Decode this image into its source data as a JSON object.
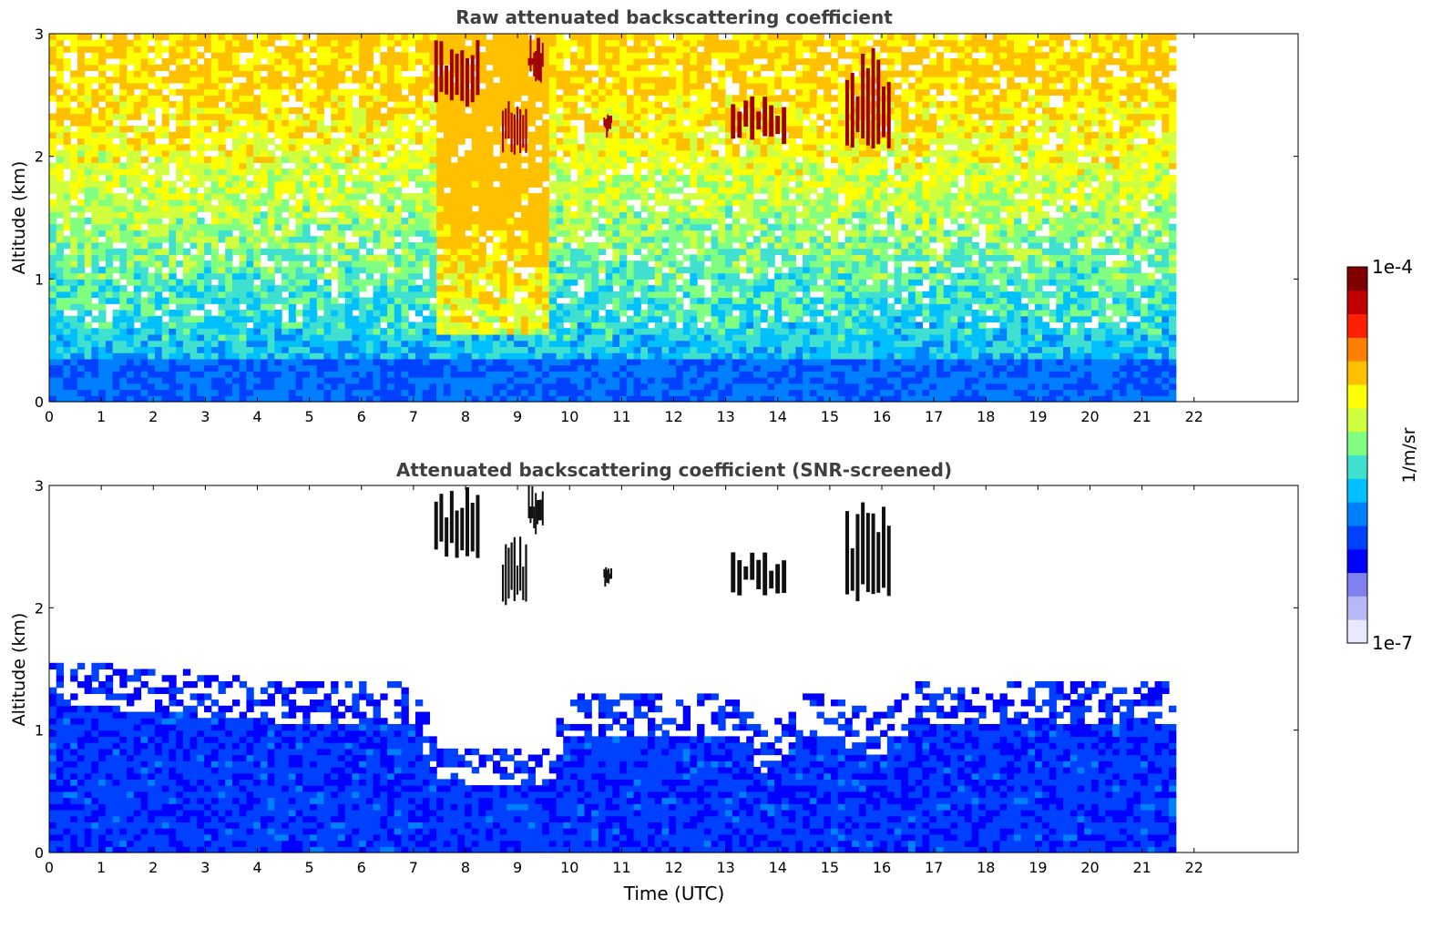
{
  "chart_data": [
    {
      "type": "heatmap",
      "title": "Raw attenuated backscattering coefficient",
      "xlabel": "",
      "ylabel": "Altitude (km)",
      "xlim": [
        0,
        24
      ],
      "ylim": [
        0,
        3
      ],
      "x_ticks": [
        0,
        1,
        2,
        3,
        4,
        5,
        6,
        7,
        8,
        9,
        10,
        11,
        12,
        13,
        14,
        15,
        16,
        17,
        18,
        19,
        20,
        21,
        22
      ],
      "y_ticks": [
        0,
        1,
        2,
        3
      ],
      "data_end_time": 21.65,
      "grid": false,
      "features": [
        {
          "kind": "cloud-layer",
          "t_start": 7.4,
          "t_end": 8.3,
          "alt_bottom": 2.4,
          "alt_top": 3.0
        },
        {
          "kind": "cloud-layer",
          "t_start": 8.7,
          "t_end": 9.2,
          "alt_bottom": 2.0,
          "alt_top": 2.6
        },
        {
          "kind": "cloud-layer",
          "t_start": 9.2,
          "t_end": 9.5,
          "alt_bottom": 2.6,
          "alt_top": 3.0
        },
        {
          "kind": "cloud-layer",
          "t_start": 10.65,
          "t_end": 10.8,
          "alt_bottom": 2.15,
          "alt_top": 2.35
        },
        {
          "kind": "cloud-layer",
          "t_start": 13.1,
          "t_end": 14.2,
          "alt_bottom": 2.1,
          "alt_top": 2.5
        },
        {
          "kind": "cloud-layer",
          "t_start": 15.3,
          "t_end": 16.2,
          "alt_bottom": 2.05,
          "alt_top": 2.9
        }
      ]
    },
    {
      "type": "heatmap",
      "title": "Attenuated backscattering coefficient (SNR-screened)",
      "xlabel": "Time (UTC)",
      "ylabel": "Altitude (km)",
      "xlim": [
        0,
        24
      ],
      "ylim": [
        0,
        3
      ],
      "x_ticks": [
        0,
        1,
        2,
        3,
        4,
        5,
        6,
        7,
        8,
        9,
        10,
        11,
        12,
        13,
        14,
        15,
        16,
        17,
        18,
        19,
        20,
        21,
        22
      ],
      "y_ticks": [
        0,
        1,
        2,
        3
      ],
      "data_end_time": 21.65,
      "grid": false,
      "boundary_layer_top_km": [
        [
          0,
          1.2
        ],
        [
          4,
          1.05
        ],
        [
          7,
          1.0
        ],
        [
          7.4,
          0.5
        ],
        [
          9.5,
          0.5
        ],
        [
          10,
          0.95
        ],
        [
          13,
          0.95
        ],
        [
          13.7,
          0.6
        ],
        [
          14.5,
          0.95
        ],
        [
          16,
          0.75
        ],
        [
          16.5,
          1.0
        ],
        [
          21.65,
          1.05
        ]
      ]
    }
  ],
  "colorbar": {
    "label": "1/m/sr",
    "min_label": "1e-7",
    "max_label": "1e-4",
    "scale": "log",
    "colors": [
      "#e8e8ff",
      "#b8b8f8",
      "#8080f0",
      "#0000ff",
      "#0040ff",
      "#0080ff",
      "#00c0ff",
      "#40e0d0",
      "#80ff80",
      "#d0ff40",
      "#ffff00",
      "#ffc000",
      "#ff8000",
      "#ff2000",
      "#c00000",
      "#800000"
    ]
  }
}
